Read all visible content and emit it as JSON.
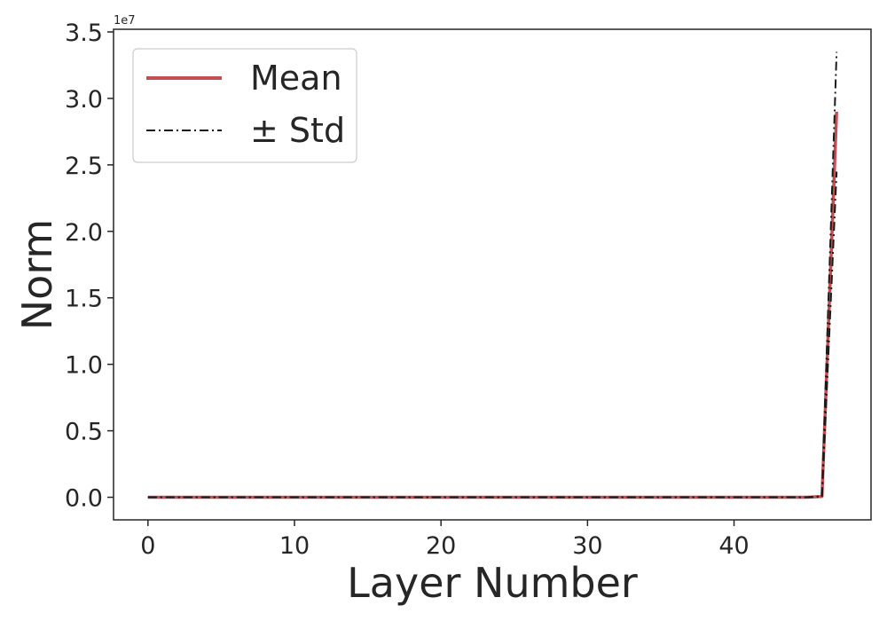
{
  "chart_data": {
    "type": "line",
    "xlabel": "Layer Number",
    "ylabel": "Norm",
    "offset_label": "1e7",
    "xlim": [
      -2.35,
      49.35
    ],
    "ylim": [
      -1700000,
      35200000
    ],
    "xticks": [
      0,
      10,
      20,
      30,
      40
    ],
    "xtick_labels": [
      "0",
      "10",
      "20",
      "30",
      "40"
    ],
    "yticks": [
      0,
      5000000,
      10000000,
      15000000,
      20000000,
      25000000,
      30000000,
      35000000
    ],
    "ytick_labels": [
      "0.0",
      "0.5",
      "1.0",
      "1.5",
      "2.0",
      "2.5",
      "3.0",
      "3.5"
    ],
    "grid": false,
    "legend_position": "top-left",
    "colors": {
      "mean": "#c44e52",
      "std": "#1a1a1a",
      "axes": "#262626"
    },
    "x": [
      0,
      1,
      2,
      3,
      4,
      5,
      6,
      7,
      8,
      9,
      10,
      11,
      12,
      13,
      14,
      15,
      16,
      17,
      18,
      19,
      20,
      21,
      22,
      23,
      24,
      25,
      26,
      27,
      28,
      29,
      30,
      31,
      32,
      33,
      34,
      35,
      36,
      37,
      38,
      39,
      40,
      41,
      42,
      43,
      44,
      45,
      46,
      47
    ],
    "series": [
      {
        "name": "Mean",
        "role": "mean",
        "values": [
          0,
          0,
          0,
          0,
          0,
          0,
          0,
          0,
          0,
          0,
          0,
          0,
          0,
          0,
          0,
          0,
          0,
          0,
          0,
          0,
          0,
          0,
          0,
          0,
          0,
          0,
          0,
          0,
          0,
          0,
          0,
          0,
          0,
          0,
          0,
          0,
          0,
          0,
          0,
          0,
          0,
          0,
          0,
          0,
          0,
          0,
          60000,
          29000000
        ]
      },
      {
        "name": "± Std",
        "role": "upper",
        "values": [
          0,
          0,
          0,
          0,
          0,
          0,
          0,
          0,
          0,
          0,
          0,
          0,
          0,
          0,
          0,
          0,
          0,
          0,
          0,
          0,
          0,
          0,
          0,
          0,
          0,
          0,
          0,
          0,
          0,
          0,
          0,
          0,
          0,
          0,
          0,
          0,
          0,
          0,
          0,
          0,
          0,
          0,
          0,
          0,
          0,
          0,
          80000,
          33500000
        ]
      },
      {
        "name": "",
        "role": "lower",
        "values": [
          0,
          0,
          0,
          0,
          0,
          0,
          0,
          0,
          0,
          0,
          0,
          0,
          0,
          0,
          0,
          0,
          0,
          0,
          0,
          0,
          0,
          0,
          0,
          0,
          0,
          0,
          0,
          0,
          0,
          0,
          0,
          0,
          0,
          0,
          0,
          0,
          0,
          0,
          0,
          0,
          0,
          0,
          0,
          0,
          0,
          0,
          40000,
          24500000
        ]
      }
    ]
  }
}
